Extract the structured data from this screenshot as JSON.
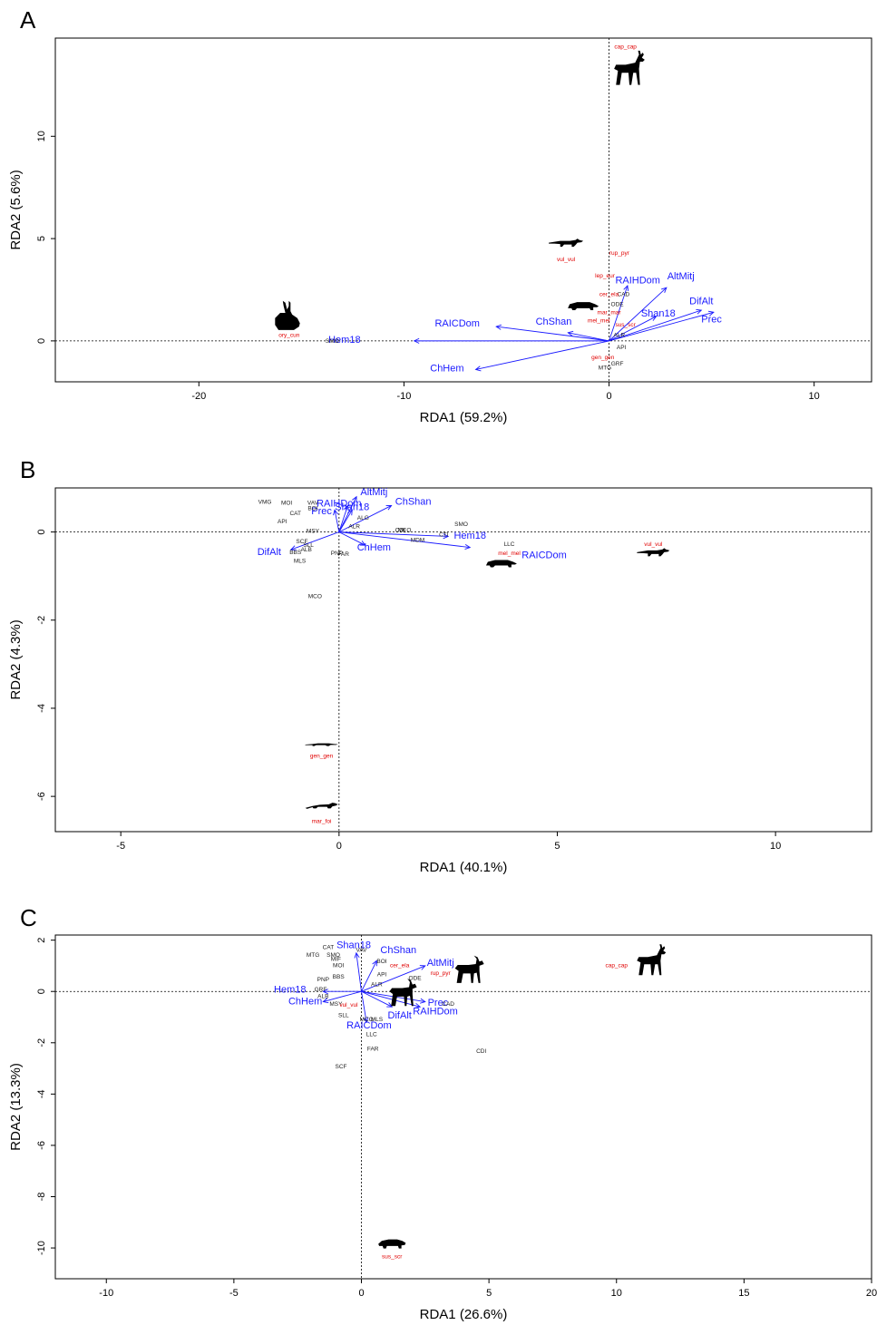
{
  "colors": {
    "site": "#222222",
    "species": "#e00000",
    "env": "#1a1aff",
    "silhouette": "#000000"
  },
  "chart_data": [
    {
      "type": "scatter",
      "panel": "A",
      "xlabel": "RDA1 (59.2%)",
      "ylabel": "RDA2 (5.6%)",
      "xlim": [
        -27,
        12.8
      ],
      "ylim": [
        -2,
        14.8
      ],
      "xticks": [
        -20,
        -10,
        0,
        10
      ],
      "yticks": [
        0,
        5,
        10
      ],
      "grid": false,
      "env_vectors": [
        {
          "name": "AltMitj",
          "x": 2.8,
          "y": 2.6
        },
        {
          "name": "DifAlt",
          "x": 4.5,
          "y": 1.5
        },
        {
          "name": "Prec",
          "x": 5.1,
          "y": 1.4
        },
        {
          "name": "Shan18",
          "x": 2.3,
          "y": 1.2
        },
        {
          "name": "RAIHDom",
          "x": 0.9,
          "y": 2.7
        },
        {
          "name": "ChShan",
          "x": -2.0,
          "y": 0.4
        },
        {
          "name": "RAICDom",
          "x": -5.5,
          "y": 0.7
        },
        {
          "name": "Hem18",
          "x": -9.5,
          "y": 0.0
        },
        {
          "name": "ChHem",
          "x": -6.5,
          "y": -1.4
        }
      ],
      "env_labels": [
        {
          "name": "AltMitj",
          "x": 3.5,
          "y": 3.0
        },
        {
          "name": "DifAlt",
          "x": 4.5,
          "y": 1.8
        },
        {
          "name": "Prec",
          "x": 5.0,
          "y": 0.9
        },
        {
          "name": "Shan18",
          "x": 2.4,
          "y": 1.2
        },
        {
          "name": "RAIHDom",
          "x": 1.4,
          "y": 2.8
        },
        {
          "name": "ChShan",
          "x": -2.7,
          "y": 0.8
        },
        {
          "name": "RAICDom",
          "x": -7.4,
          "y": 0.7
        },
        {
          "name": "Hem18",
          "x": -12.9,
          "y": -0.1
        },
        {
          "name": "ChHem",
          "x": -7.9,
          "y": -1.5
        }
      ],
      "species": [
        {
          "code": "cap_cap",
          "x": 0.8,
          "y": 14.3
        },
        {
          "code": "rup_pyr",
          "x": 0.5,
          "y": 4.2
        },
        {
          "code": "vul_vul",
          "x": -2.1,
          "y": 3.9
        },
        {
          "code": "lep_eur",
          "x": -0.2,
          "y": 3.1
        },
        {
          "code": "cer_ela",
          "x": 0.0,
          "y": 2.2
        },
        {
          "code": "mar_mar",
          "x": 0.0,
          "y": 1.3
        },
        {
          "code": "mel_mel",
          "x": -0.5,
          "y": 0.9
        },
        {
          "code": "sus_scr",
          "x": 0.8,
          "y": 0.7
        },
        {
          "code": "ory_cun",
          "x": -15.6,
          "y": 0.2
        },
        {
          "code": "gen_gen",
          "x": -0.3,
          "y": -0.9
        }
      ],
      "sites": [
        {
          "code": "CAD",
          "x": 0.7,
          "y": 2.2
        },
        {
          "code": "ODE",
          "x": 0.4,
          "y": 1.7
        },
        {
          "code": "SMO",
          "x": -13.5,
          "y": -0.1
        },
        {
          "code": "MTG",
          "x": -0.2,
          "y": -1.4
        },
        {
          "code": "GRF",
          "x": 0.4,
          "y": -1.2
        },
        {
          "code": "ALR",
          "x": 0.5,
          "y": 0.2
        },
        {
          "code": "API",
          "x": 0.6,
          "y": -0.4
        }
      ],
      "silhouettes": [
        {
          "animal": "deer",
          "x": 0.9,
          "y": 13.3,
          "w": 38,
          "h": 40
        },
        {
          "animal": "fox",
          "x": -2.1,
          "y": 4.6,
          "w": 38,
          "h": 18
        },
        {
          "animal": "badger",
          "x": -1.3,
          "y": 1.5,
          "w": 36,
          "h": 20
        },
        {
          "animal": "rabbit",
          "x": -15.7,
          "y": 1.2,
          "w": 34,
          "h": 34
        }
      ]
    },
    {
      "type": "scatter",
      "panel": "B",
      "xlabel": "RDA1 (40.1%)",
      "ylabel": "RDA2 (4.3%)",
      "xlim": [
        -6.5,
        12.2
      ],
      "ylim": [
        -6.8,
        1.0
      ],
      "xticks": [
        -5,
        0,
        5,
        10
      ],
      "yticks": [
        -6,
        -4,
        -2,
        0
      ],
      "grid": false,
      "env_vectors": [
        {
          "name": "AltMitj",
          "x": 0.4,
          "y": 0.8
        },
        {
          "name": "ChShan",
          "x": 1.2,
          "y": 0.6
        },
        {
          "name": "RAIHDom",
          "x": 0.2,
          "y": 0.6
        },
        {
          "name": "Prec",
          "x": -0.1,
          "y": 0.5
        },
        {
          "name": "Shan18",
          "x": 0.3,
          "y": 0.5
        },
        {
          "name": "Hem18",
          "x": 2.5,
          "y": -0.1
        },
        {
          "name": "RAICDom",
          "x": 3.0,
          "y": -0.35
        },
        {
          "name": "DifAlt",
          "x": -1.1,
          "y": -0.4
        },
        {
          "name": "ChHem",
          "x": 0.6,
          "y": -0.3
        }
      ],
      "env_labels": [
        {
          "name": "AltMitj",
          "x": 0.8,
          "y": 0.84
        },
        {
          "name": "ChShan",
          "x": 1.7,
          "y": 0.62
        },
        {
          "name": "RAIHDom",
          "x": 0.0,
          "y": 0.58
        },
        {
          "name": "Prec",
          "x": -0.4,
          "y": 0.4
        },
        {
          "name": "Shan18",
          "x": 0.3,
          "y": 0.5
        },
        {
          "name": "Hem18",
          "x": 3.0,
          "y": -0.15
        },
        {
          "name": "RAICDom",
          "x": 4.7,
          "y": -0.6
        },
        {
          "name": "DifAlt",
          "x": -1.6,
          "y": -0.52
        },
        {
          "name": "ChHem",
          "x": 0.8,
          "y": -0.42
        }
      ],
      "species": [
        {
          "code": "vul_vul",
          "x": 7.2,
          "y": -0.32
        },
        {
          "code": "mel_mel",
          "x": 3.9,
          "y": -0.52
        },
        {
          "code": "gen_gen",
          "x": -0.4,
          "y": -5.12
        },
        {
          "code": "mar_foi",
          "x": -0.4,
          "y": -6.6
        }
      ],
      "sites": [
        {
          "code": "VMG",
          "x": -1.7,
          "y": 0.64
        },
        {
          "code": "MOI",
          "x": -1.2,
          "y": 0.62
        },
        {
          "code": "VAV",
          "x": -0.6,
          "y": 0.62
        },
        {
          "code": "BOI",
          "x": -0.6,
          "y": 0.5
        },
        {
          "code": "CAT",
          "x": -1.0,
          "y": 0.38
        },
        {
          "code": "API",
          "x": -1.3,
          "y": 0.2
        },
        {
          "code": "MSY",
          "x": -0.6,
          "y": -0.02
        },
        {
          "code": "ALG",
          "x": 0.55,
          "y": 0.28
        },
        {
          "code": "ALR",
          "x": 0.35,
          "y": 0.08
        },
        {
          "code": "SCF",
          "x": -0.85,
          "y": -0.26
        },
        {
          "code": "SLL",
          "x": -0.7,
          "y": -0.34
        },
        {
          "code": "ALB",
          "x": -0.75,
          "y": -0.44
        },
        {
          "code": "BBS",
          "x": -1.0,
          "y": -0.5
        },
        {
          "code": "MLS",
          "x": -0.9,
          "y": -0.7
        },
        {
          "code": "PNP",
          "x": -0.05,
          "y": -0.52
        },
        {
          "code": "FAR",
          "x": 0.1,
          "y": -0.54
        },
        {
          "code": "CDI",
          "x": 1.4,
          "y": 0.0
        },
        {
          "code": "MEO",
          "x": 1.5,
          "y": 0.0
        },
        {
          "code": "MDM",
          "x": 1.8,
          "y": -0.22
        },
        {
          "code": "CTI",
          "x": 2.4,
          "y": -0.1
        },
        {
          "code": "SMO",
          "x": 2.8,
          "y": 0.14
        },
        {
          "code": "LLC",
          "x": 3.9,
          "y": -0.32
        },
        {
          "code": "MCO",
          "x": -0.55,
          "y": -1.5
        }
      ],
      "silhouettes": [
        {
          "animal": "fox",
          "x": 7.2,
          "y": -0.55,
          "w": 36,
          "h": 18
        },
        {
          "animal": "badger",
          "x": 3.7,
          "y": -0.8,
          "w": 36,
          "h": 18
        },
        {
          "animal": "genet",
          "x": -0.4,
          "y": -4.9,
          "w": 36,
          "h": 12
        },
        {
          "animal": "marten",
          "x": -0.4,
          "y": -6.3,
          "w": 36,
          "h": 16
        }
      ]
    },
    {
      "type": "scatter",
      "panel": "C",
      "xlabel": "RDA1 (26.6%)",
      "ylabel": "RDA2 (13.3%)",
      "xlim": [
        -12,
        20
      ],
      "ylim": [
        -11.2,
        2.2
      ],
      "xticks": [
        -10,
        -5,
        0,
        5,
        10,
        15,
        20
      ],
      "yticks": [
        -10,
        -8,
        -6,
        -4,
        -2,
        0,
        2
      ],
      "grid": false,
      "env_vectors": [
        {
          "name": "Shan18",
          "x": -0.2,
          "y": 1.5
        },
        {
          "name": "ChShan",
          "x": 0.6,
          "y": 1.2
        },
        {
          "name": "AltMitj",
          "x": 2.5,
          "y": 1.0
        },
        {
          "name": "Prec",
          "x": 2.5,
          "y": -0.4
        },
        {
          "name": "RAIHDom",
          "x": 2.3,
          "y": -0.6
        },
        {
          "name": "DifAlt",
          "x": 1.2,
          "y": -0.6
        },
        {
          "name": "RAICDom",
          "x": 0.2,
          "y": -1.2
        },
        {
          "name": "Hem18",
          "x": -1.5,
          "y": 0.0
        },
        {
          "name": "ChHem",
          "x": -1.5,
          "y": -0.4
        }
      ],
      "env_labels": [
        {
          "name": "Shan18",
          "x": -0.3,
          "y": 1.68
        },
        {
          "name": "ChShan",
          "x": 1.45,
          "y": 1.5
        },
        {
          "name": "AltMitj",
          "x": 3.1,
          "y": 1.0
        },
        {
          "name": "Prec",
          "x": 3.0,
          "y": -0.55
        },
        {
          "name": "RAIHDom",
          "x": 2.9,
          "y": -0.9
        },
        {
          "name": "DifAlt",
          "x": 1.5,
          "y": -1.05
        },
        {
          "name": "RAICDom",
          "x": 0.3,
          "y": -1.45
        },
        {
          "name": "Hem18",
          "x": -2.8,
          "y": -0.05
        },
        {
          "name": "ChHem",
          "x": -2.2,
          "y": -0.5
        }
      ],
      "species": [
        {
          "code": "cap_cap",
          "x": 10.0,
          "y": 0.95
        },
        {
          "code": "cer_ela",
          "x": 1.5,
          "y": 0.95
        },
        {
          "code": "rup_pyr",
          "x": 3.1,
          "y": 0.65
        },
        {
          "code": "sus_scr",
          "x": 1.2,
          "y": -10.4
        },
        {
          "code": "vul_vul",
          "x": -0.5,
          "y": -0.6
        }
      ],
      "sites": [
        {
          "code": "CAT",
          "x": -1.3,
          "y": 1.65
        },
        {
          "code": "VAV",
          "x": 0.0,
          "y": 1.55
        },
        {
          "code": "MTG",
          "x": -1.9,
          "y": 1.35
        },
        {
          "code": "SMO",
          "x": -1.1,
          "y": 1.35
        },
        {
          "code": "MIF",
          "x": -1.0,
          "y": 1.2
        },
        {
          "code": "MOI",
          "x": -0.9,
          "y": 0.95
        },
        {
          "code": "BOI",
          "x": 0.8,
          "y": 1.1
        },
        {
          "code": "BBS",
          "x": -0.9,
          "y": 0.5
        },
        {
          "code": "PNP",
          "x": -1.5,
          "y": 0.4
        },
        {
          "code": "GRF",
          "x": -1.6,
          "y": 0.0
        },
        {
          "code": "API",
          "x": 0.8,
          "y": 0.6
        },
        {
          "code": "ODE",
          "x": 2.1,
          "y": 0.45
        },
        {
          "code": "ALR",
          "x": 0.6,
          "y": 0.2
        },
        {
          "code": "ALB",
          "x": -1.5,
          "y": -0.25
        },
        {
          "code": "MSY",
          "x": -1.0,
          "y": -0.55
        },
        {
          "code": "SLL",
          "x": -0.7,
          "y": -1.0
        },
        {
          "code": "MCO",
          "x": 0.2,
          "y": -1.15
        },
        {
          "code": "MLS",
          "x": 0.6,
          "y": -1.15
        },
        {
          "code": "LLC",
          "x": 0.4,
          "y": -1.75
        },
        {
          "code": "FAR",
          "x": 0.45,
          "y": -2.3
        },
        {
          "code": "CAD",
          "x": 3.4,
          "y": -0.55
        },
        {
          "code": "CDI",
          "x": 4.7,
          "y": -2.4
        },
        {
          "code": "SCF",
          "x": -0.8,
          "y": -3.0
        }
      ],
      "silhouettes": [
        {
          "animal": "ibex",
          "x": 4.2,
          "y": 0.8,
          "w": 36,
          "h": 34
        },
        {
          "animal": "deer",
          "x": 11.3,
          "y": 1.2,
          "w": 36,
          "h": 36
        },
        {
          "animal": "ibex",
          "x": 1.6,
          "y": -0.1,
          "w": 34,
          "h": 34
        },
        {
          "animal": "boar",
          "x": 1.2,
          "y": -10.0,
          "w": 34,
          "h": 20
        }
      ]
    }
  ]
}
